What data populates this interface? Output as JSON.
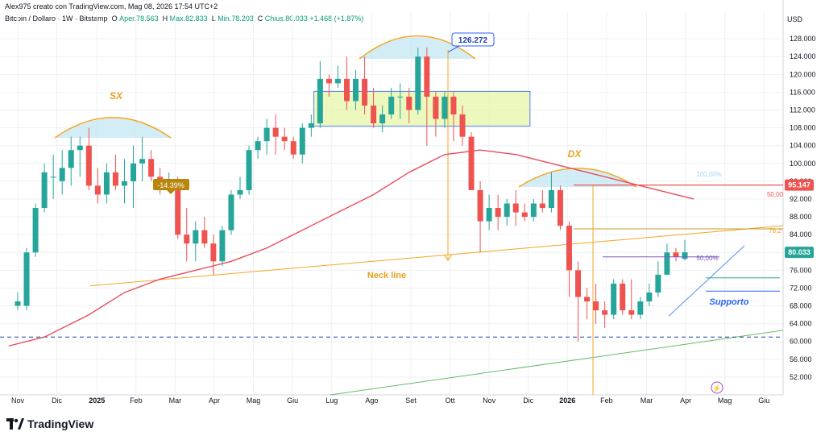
{
  "header": {
    "author_line": "Alex975 creato con TradingView.com, Mag 08, 2026 17:54 UTC+2",
    "symbol": "Bitcoin / Dollaro · 1W · Bitstamp",
    "ohlc": [
      {
        "label": "O",
        "value": "Aper.78.563"
      },
      {
        "label": "H",
        "value": "Max.82.833"
      },
      {
        "label": "L",
        "value": "Min.78.203"
      },
      {
        "label": "C",
        "value": "Chius.80.033"
      },
      {
        "label": "",
        "value": "+1.468 (+1,87%)"
      }
    ],
    "currency": "USD"
  },
  "logo": {
    "text": "TradingView"
  },
  "colors": {
    "up": "#26a69a",
    "down": "#ef5350",
    "ema": "#e84c5a",
    "neckline": "#f5a623",
    "support": "#2962ff",
    "green_trend": "#66bb6a",
    "dashed": "#1e40af",
    "box": "#e7f5a8",
    "dome": "#bfe6f2",
    "orange_arc": "#f5a623"
  },
  "chart_data": {
    "type": "candlestick",
    "title": "Bitcoin / Dollaro · 1W · Bitstamp",
    "ylabel": "USD",
    "ylim": [
      48,
      134
    ],
    "y_ticks": [
      "52.000",
      "56.000",
      "60.000",
      "64.000",
      "68.000",
      "72.000",
      "76.000",
      "80.000",
      "84.000",
      "88.000",
      "92.000",
      "96.000",
      "100.000",
      "104.000",
      "108.000",
      "112.000",
      "116.000",
      "120.000",
      "124.000",
      "128.000"
    ],
    "x_labels": [
      "Nov",
      "Dic",
      "2025",
      "Feb",
      "Mar",
      "Apr",
      "Mag",
      "Giu",
      "Lug",
      "Ago",
      "Set",
      "Ott",
      "Nov",
      "Dic",
      "2026",
      "Feb",
      "Mar",
      "Apr",
      "Mag",
      "Giu"
    ],
    "x_label_weeks": [
      0,
      4.4,
      8.9,
      13.3,
      17.7,
      22.1,
      26.5,
      30.9,
      35.3,
      39.8,
      44.2,
      48.6,
      53,
      57.4,
      61.8,
      66.2,
      70.7,
      75.1,
      79.5,
      83.9
    ],
    "candles": [
      {
        "w": 0,
        "o": 68,
        "h": 71,
        "l": 67,
        "c": 69
      },
      {
        "w": 1,
        "o": 68,
        "h": 81,
        "l": 67,
        "c": 80
      },
      {
        "w": 2,
        "o": 80,
        "h": 91,
        "l": 79,
        "c": 90
      },
      {
        "w": 3,
        "o": 90,
        "h": 100,
        "l": 89,
        "c": 98
      },
      {
        "w": 4,
        "o": 97,
        "h": 102,
        "l": 92,
        "c": 97
      },
      {
        "w": 5,
        "o": 96,
        "h": 103,
        "l": 93,
        "c": 99
      },
      {
        "w": 6,
        "o": 99,
        "h": 106,
        "l": 95,
        "c": 103
      },
      {
        "w": 7,
        "o": 103,
        "h": 106,
        "l": 97,
        "c": 104
      },
      {
        "w": 8,
        "o": 104,
        "h": 108,
        "l": 94,
        "c": 95
      },
      {
        "w": 9,
        "o": 95,
        "h": 99,
        "l": 91,
        "c": 93
      },
      {
        "w": 10,
        "o": 93,
        "h": 100,
        "l": 91,
        "c": 98
      },
      {
        "w": 11,
        "o": 98,
        "h": 102,
        "l": 94,
        "c": 95
      },
      {
        "w": 12,
        "o": 95,
        "h": 101,
        "l": 91,
        "c": 96
      },
      {
        "w": 13,
        "o": 96,
        "h": 104,
        "l": 90,
        "c": 100
      },
      {
        "w": 14,
        "o": 100,
        "h": 106,
        "l": 96,
        "c": 101
      },
      {
        "w": 15,
        "o": 101,
        "h": 103,
        "l": 96,
        "c": 97
      },
      {
        "w": 16,
        "o": 97,
        "h": 99,
        "l": 93,
        "c": 96
      },
      {
        "w": 17,
        "o": 96,
        "h": 98,
        "l": 95,
        "c": 96
      },
      {
        "w": 18,
        "o": 96,
        "h": 97,
        "l": 83,
        "c": 84
      },
      {
        "w": 19,
        "o": 84,
        "h": 90,
        "l": 78,
        "c": 82
      },
      {
        "w": 20,
        "o": 82,
        "h": 87,
        "l": 78,
        "c": 85
      },
      {
        "w": 21,
        "o": 85,
        "h": 88,
        "l": 81,
        "c": 82
      },
      {
        "w": 22,
        "o": 82,
        "h": 84,
        "l": 75,
        "c": 78
      },
      {
        "w": 23,
        "o": 78,
        "h": 86,
        "l": 77,
        "c": 85
      },
      {
        "w": 24,
        "o": 85,
        "h": 94,
        "l": 84,
        "c": 93
      },
      {
        "w": 25,
        "o": 93,
        "h": 97,
        "l": 92,
        "c": 94
      },
      {
        "w": 26,
        "o": 94,
        "h": 104,
        "l": 93,
        "c": 103
      },
      {
        "w": 27,
        "o": 103,
        "h": 106,
        "l": 101,
        "c": 105
      },
      {
        "w": 28,
        "o": 105,
        "h": 110,
        "l": 102,
        "c": 108
      },
      {
        "w": 29,
        "o": 108,
        "h": 111,
        "l": 102,
        "c": 106
      },
      {
        "w": 30,
        "o": 106,
        "h": 108,
        "l": 103,
        "c": 105
      },
      {
        "w": 31,
        "o": 105,
        "h": 106,
        "l": 101,
        "c": 102
      },
      {
        "w": 32,
        "o": 102,
        "h": 109,
        "l": 100,
        "c": 108
      },
      {
        "w": 33,
        "o": 108,
        "h": 111,
        "l": 106,
        "c": 109
      },
      {
        "w": 34,
        "o": 109,
        "h": 123,
        "l": 108,
        "c": 119
      },
      {
        "w": 35,
        "o": 119,
        "h": 120,
        "l": 115,
        "c": 118
      },
      {
        "w": 36,
        "o": 118,
        "h": 122,
        "l": 117,
        "c": 119
      },
      {
        "w": 37,
        "o": 119,
        "h": 124,
        "l": 112,
        "c": 114
      },
      {
        "w": 38,
        "o": 114,
        "h": 121,
        "l": 112,
        "c": 119
      },
      {
        "w": 39,
        "o": 119,
        "h": 124,
        "l": 111,
        "c": 113
      },
      {
        "w": 40,
        "o": 113,
        "h": 117,
        "l": 108,
        "c": 109
      },
      {
        "w": 41,
        "o": 109,
        "h": 113,
        "l": 107,
        "c": 111
      },
      {
        "w": 42,
        "o": 111,
        "h": 117,
        "l": 110,
        "c": 115
      },
      {
        "w": 43,
        "o": 115,
        "h": 118,
        "l": 110,
        "c": 115
      },
      {
        "w": 44,
        "o": 115,
        "h": 117,
        "l": 109,
        "c": 112
      },
      {
        "w": 45,
        "o": 112,
        "h": 126,
        "l": 111,
        "c": 124
      },
      {
        "w": 46,
        "o": 124,
        "h": 126,
        "l": 104,
        "c": 115
      },
      {
        "w": 47,
        "o": 115,
        "h": 116,
        "l": 106,
        "c": 110
      },
      {
        "w": 48,
        "o": 110,
        "h": 116,
        "l": 108,
        "c": 115
      },
      {
        "w": 49,
        "o": 115,
        "h": 116,
        "l": 105,
        "c": 111
      },
      {
        "w": 50,
        "o": 111,
        "h": 113,
        "l": 104,
        "c": 106
      },
      {
        "w": 51,
        "o": 106,
        "h": 107,
        "l": 94,
        "c": 94
      },
      {
        "w": 52,
        "o": 94,
        "h": 96,
        "l": 80,
        "c": 87
      },
      {
        "w": 53,
        "o": 87,
        "h": 93,
        "l": 85,
        "c": 90
      },
      {
        "w": 54,
        "o": 90,
        "h": 93,
        "l": 85,
        "c": 88
      },
      {
        "w": 55,
        "o": 88,
        "h": 92,
        "l": 86,
        "c": 91
      },
      {
        "w": 56,
        "o": 91,
        "h": 94,
        "l": 86,
        "c": 89
      },
      {
        "w": 57,
        "o": 89,
        "h": 91,
        "l": 87,
        "c": 88
      },
      {
        "w": 58,
        "o": 88,
        "h": 92,
        "l": 87,
        "c": 91
      },
      {
        "w": 59,
        "o": 91,
        "h": 94,
        "l": 89,
        "c": 90
      },
      {
        "w": 60,
        "o": 90,
        "h": 98,
        "l": 89,
        "c": 94
      },
      {
        "w": 61,
        "o": 94,
        "h": 95,
        "l": 85,
        "c": 86
      },
      {
        "w": 62,
        "o": 86,
        "h": 87,
        "l": 70,
        "c": 76
      },
      {
        "w": 63,
        "o": 76,
        "h": 78,
        "l": 60,
        "c": 70
      },
      {
        "w": 64,
        "o": 70,
        "h": 72,
        "l": 65,
        "c": 69
      },
      {
        "w": 65,
        "o": 69,
        "h": 73,
        "l": 64,
        "c": 67
      },
      {
        "w": 66,
        "o": 67,
        "h": 69,
        "l": 63,
        "c": 66
      },
      {
        "w": 67,
        "o": 66,
        "h": 74,
        "l": 65,
        "c": 73
      },
      {
        "w": 68,
        "o": 73,
        "h": 74,
        "l": 66,
        "c": 67
      },
      {
        "w": 69,
        "o": 67,
        "h": 74,
        "l": 65,
        "c": 66
      },
      {
        "w": 70,
        "o": 66,
        "h": 70,
        "l": 65,
        "c": 69
      },
      {
        "w": 71,
        "o": 69,
        "h": 73,
        "l": 68,
        "c": 71
      },
      {
        "w": 72,
        "o": 71,
        "h": 78,
        "l": 70,
        "c": 75
      },
      {
        "w": 73,
        "o": 75,
        "h": 82,
        "l": 75,
        "c": 80
      },
      {
        "w": 74,
        "o": 80,
        "h": 81,
        "l": 78,
        "c": 79
      },
      {
        "w": 75,
        "o": 78.563,
        "h": 82.833,
        "l": 78.203,
        "c": 80.033
      }
    ],
    "ema": [
      [
        -1,
        59
      ],
      [
        3,
        61
      ],
      [
        8,
        66
      ],
      [
        12,
        71
      ],
      [
        16,
        74
      ],
      [
        20,
        76
      ],
      [
        24,
        78
      ],
      [
        28,
        81
      ],
      [
        32,
        85
      ],
      [
        36,
        89
      ],
      [
        40,
        93
      ],
      [
        44,
        98
      ],
      [
        48,
        102
      ],
      [
        52,
        103
      ],
      [
        56,
        102
      ],
      [
        60,
        100
      ],
      [
        64,
        98
      ],
      [
        68,
        96
      ],
      [
        72,
        94
      ],
      [
        76,
        92
      ]
    ],
    "price_labels": [
      {
        "value": "95.147",
        "y": 95.147,
        "color": "#ef5350"
      },
      {
        "value": "80.033",
        "y": 80.033,
        "color": "#26a69a"
      }
    ],
    "annotations": {
      "sx_label": "SX",
      "dx_label": "DX",
      "neckline_label": "Neck line",
      "support_label": "Supporto",
      "peak_label": "126.272",
      "drop_label": "-14.39%",
      "fib_50_right": "50,00%",
      "fib_50_left": "50,00%",
      "fib_100": "100,00%",
      "fib_78": "78,2",
      "ema_label": "50,00"
    }
  }
}
